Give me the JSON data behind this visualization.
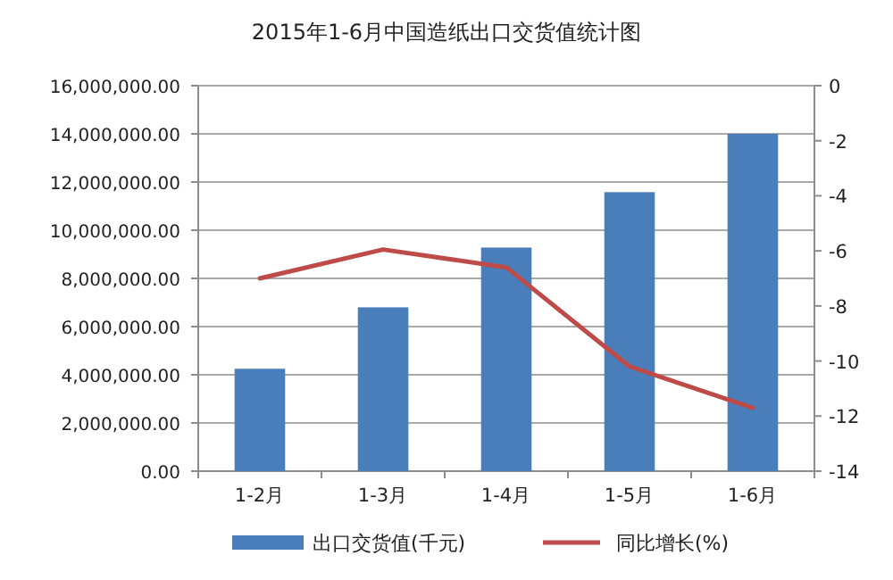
{
  "chart_data": {
    "type": "bar",
    "title": "2015年1-6月中国造纸出口交货值统计图",
    "categories": [
      "1-2月",
      "1-3月",
      "1-4月",
      "1-5月",
      "1-6月"
    ],
    "series": [
      {
        "name": "出口交货值(千元)",
        "type": "bar",
        "color": "#4a7ebb",
        "values": [
          4250000,
          6800000,
          9280000,
          11580000,
          14000000
        ]
      },
      {
        "name": "同比增长(%)",
        "type": "line",
        "axis": "y2",
        "color": "#be4b48",
        "values": [
          -7.0,
          -5.95,
          -6.6,
          -10.2,
          -11.7
        ]
      }
    ],
    "ylim": [
      0,
      16000000
    ],
    "yticks": [
      {
        "value": 0,
        "label": "0.00"
      },
      {
        "value": 2000000,
        "label": "2,000,000.00"
      },
      {
        "value": 4000000,
        "label": "4,000,000.00"
      },
      {
        "value": 6000000,
        "label": "6,000,000.00"
      },
      {
        "value": 8000000,
        "label": "8,000,000.00"
      },
      {
        "value": 10000000,
        "label": "10,000,000.00"
      },
      {
        "value": 12000000,
        "label": "12,000,000.00"
      },
      {
        "value": 14000000,
        "label": "14,000,000.00"
      },
      {
        "value": 16000000,
        "label": "16,000,000.00"
      }
    ],
    "y2lim": [
      -14,
      0
    ],
    "y2ticks": [
      -14,
      -12,
      -10,
      -8,
      -6,
      -4,
      -2,
      0
    ],
    "grid": "y",
    "legend": "bottom",
    "marker": "none",
    "line_style": "solid"
  }
}
